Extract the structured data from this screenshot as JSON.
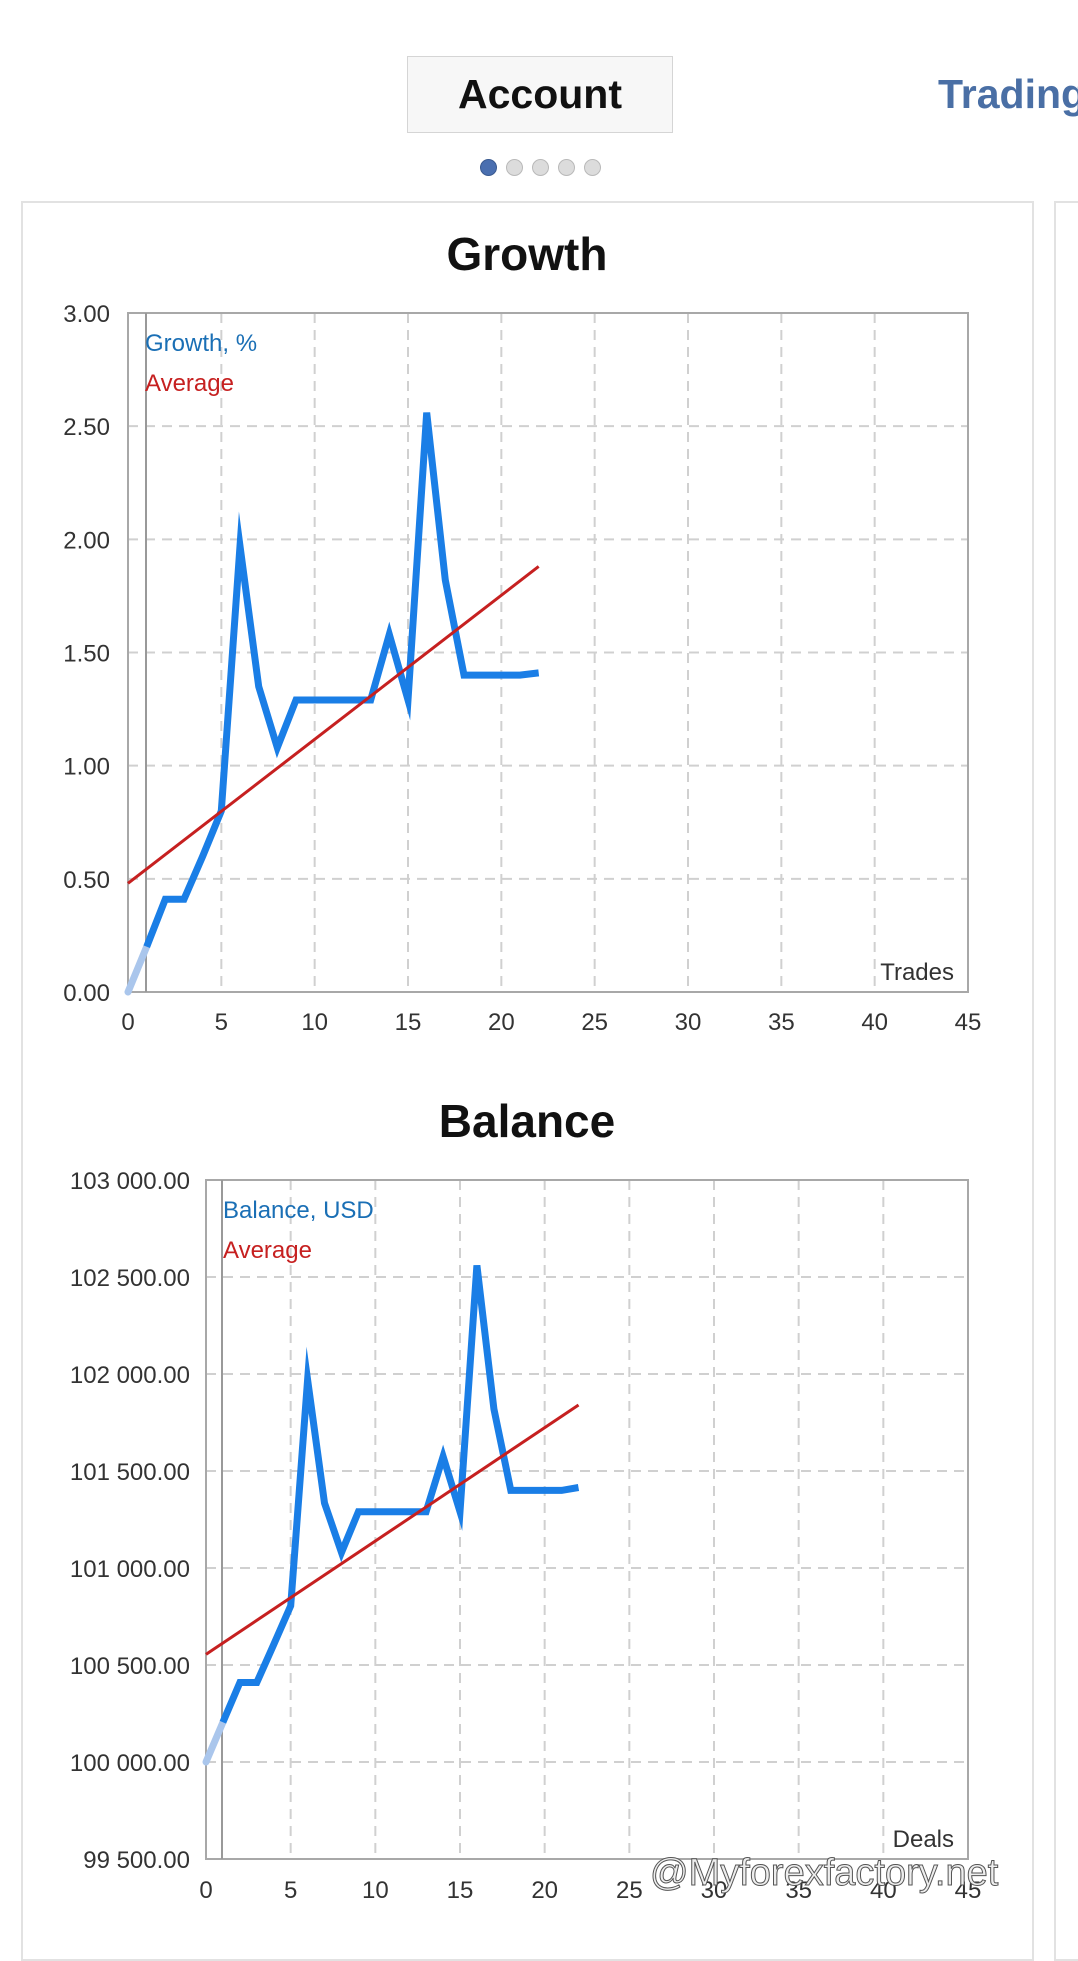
{
  "tabs": {
    "account_label": "Account",
    "trading_label": "Trading"
  },
  "pager": {
    "count": 5,
    "active": 0
  },
  "watermark": "@Myforexfactory.net",
  "colors": {
    "series": "#1a7ee6",
    "average": "#c62020",
    "series_text": "#1a6fb5",
    "early_segment": "#aac6ec"
  },
  "chart_data": [
    {
      "type": "line",
      "title": "Growth",
      "xlabel": "Trades",
      "x_ticks": [
        0,
        5,
        10,
        15,
        20,
        25,
        30,
        35,
        40,
        45
      ],
      "y_ticks": [
        "0.00",
        "0.50",
        "1.00",
        "1.50",
        "2.00",
        "2.50",
        "3.00"
      ],
      "xlim": [
        0,
        45
      ],
      "ylim": [
        0,
        3
      ],
      "grid": true,
      "legend_position": "top-left",
      "series": [
        {
          "name": "Growth, %",
          "x": [
            0,
            1,
            2,
            3,
            4,
            5,
            6,
            7,
            8,
            9,
            10,
            11,
            12,
            13,
            14,
            15,
            16,
            17,
            18,
            19,
            20,
            21,
            22
          ],
          "y": [
            0,
            0.2,
            0.41,
            0.41,
            0.6,
            0.8,
            1.97,
            1.35,
            1.08,
            1.29,
            1.29,
            1.29,
            1.29,
            1.29,
            1.58,
            1.29,
            2.56,
            1.82,
            1.4,
            1.4,
            1.4,
            1.4,
            1.41
          ]
        },
        {
          "name": "Average",
          "x": [
            0,
            22
          ],
          "y": [
            0.48,
            1.88
          ]
        }
      ]
    },
    {
      "type": "line",
      "title": "Balance",
      "xlabel": "Deals",
      "x_ticks": [
        0,
        5,
        10,
        15,
        20,
        25,
        30,
        35,
        40,
        45
      ],
      "y_ticks": [
        "99 500.00",
        "100 000.00",
        "100 500.00",
        "101 000.00",
        "101 500.00",
        "102 000.00",
        "102 500.00",
        "103 000.00"
      ],
      "xlim": [
        0,
        45
      ],
      "ylim": [
        99500,
        103000
      ],
      "grid": true,
      "legend_position": "top-left",
      "series": [
        {
          "name": "Balance, USD",
          "x": [
            0,
            1,
            2,
            3,
            4,
            5,
            6,
            7,
            8,
            9,
            10,
            11,
            12,
            13,
            14,
            15,
            16,
            17,
            18,
            19,
            20,
            21,
            22
          ],
          "y": [
            100000,
            100205,
            100410,
            100410,
            100605,
            100805,
            101970,
            101335,
            101080,
            101290,
            101290,
            101290,
            101290,
            101290,
            101575,
            101290,
            102560,
            101820,
            101400,
            101400,
            101400,
            101400,
            101415
          ]
        },
        {
          "name": "Average",
          "x": [
            0,
            22
          ],
          "y": [
            100555,
            101840
          ]
        }
      ]
    }
  ]
}
